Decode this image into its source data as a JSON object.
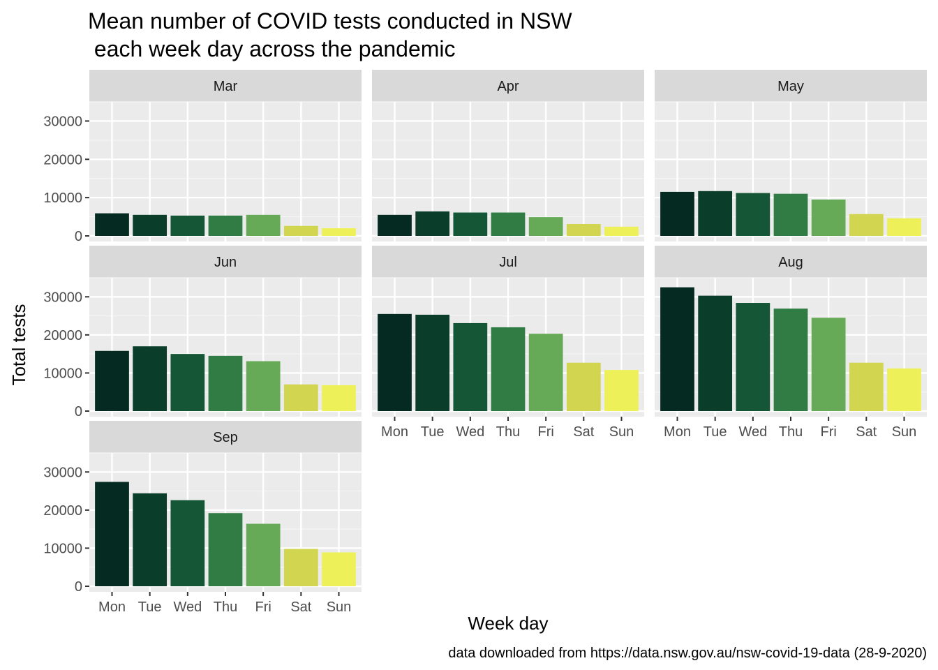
{
  "chart_data": {
    "type": "bar",
    "title": "Mean number of COVID tests conducted in NSW\n each week day across the pandemic",
    "xlabel": "Week day",
    "ylabel": "Total tests",
    "caption": "data downloaded from https://data.nsw.gov.au/nsw-covid-19-data (28-9-2020)",
    "categories": [
      "Mon",
      "Tue",
      "Wed",
      "Thu",
      "Fri",
      "Sat",
      "Sun"
    ],
    "ylim": [
      0,
      35000
    ],
    "yticks": [
      0,
      10000,
      20000,
      30000
    ],
    "grid": true,
    "colors": [
      "#052a22",
      "#0b3d2b",
      "#145636",
      "#317c44",
      "#66aa57",
      "#d2d54f",
      "#eef05a"
    ],
    "panels": [
      {
        "name": "Mar",
        "values": [
          5900,
          5500,
          5300,
          5300,
          5500,
          2600,
          2000
        ]
      },
      {
        "name": "Apr",
        "values": [
          5500,
          6400,
          6100,
          6100,
          4900,
          3100,
          2400
        ]
      },
      {
        "name": "May",
        "values": [
          11500,
          11700,
          11200,
          11000,
          9500,
          5700,
          4600
        ]
      },
      {
        "name": "Jun",
        "values": [
          15800,
          17000,
          15000,
          14500,
          13100,
          7000,
          6800
        ]
      },
      {
        "name": "Jul",
        "values": [
          25500,
          25300,
          23100,
          22000,
          20300,
          12700,
          10800
        ]
      },
      {
        "name": "Aug",
        "values": [
          32500,
          30300,
          28400,
          26900,
          24500,
          12700,
          11200
        ]
      },
      {
        "name": "Sep",
        "values": [
          27400,
          24400,
          22600,
          19200,
          16400,
          9800,
          8900
        ]
      }
    ]
  }
}
